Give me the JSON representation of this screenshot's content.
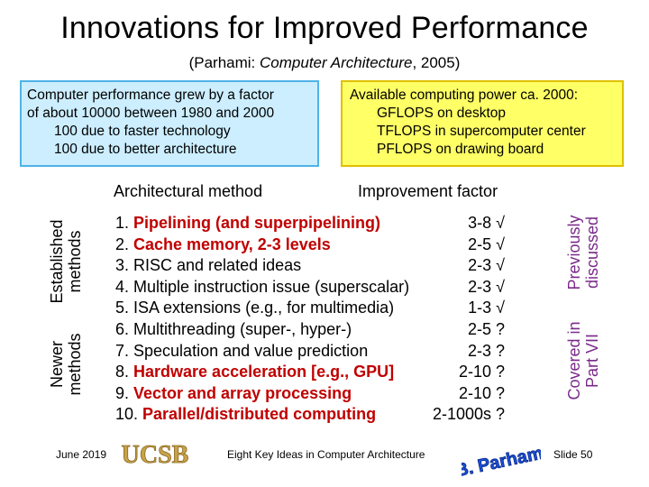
{
  "title": "Innovations for Improved Performance",
  "subtitle_prefix": "(Parhami: ",
  "subtitle_book": "Computer Architecture",
  "subtitle_suffix": ", 2005)",
  "box_left": {
    "line1": "Computer performance grew by a factor",
    "line2": "of about 10000 between 1980 and 2000",
    "line3": "100 due to faster technology",
    "line4": "100 due to better architecture"
  },
  "box_right": {
    "line1": "Available computing power ca. 2000:",
    "line2": "GFLOPS on desktop",
    "line3": "TFLOPS in supercomputer center",
    "line4": "PFLOPS on drawing board"
  },
  "columns": {
    "method": "Architectural method",
    "factor": "Improvement factor"
  },
  "side_labels": {
    "established": [
      "Established",
      "methods"
    ],
    "newer": [
      "Newer",
      "methods"
    ],
    "previously": [
      "Previously",
      "discussed"
    ],
    "covered": [
      "Covered in",
      "Part VII"
    ]
  },
  "methods": [
    {
      "num": "1. ",
      "text": "Pipelining (and superpipelining)",
      "factor": "3-8 √",
      "highlight": true
    },
    {
      "num": "2. ",
      "text": "Cache memory, 2-3 levels",
      "factor": "2-5 √",
      "highlight": true
    },
    {
      "num": "3. ",
      "text": "RISC and related ideas",
      "factor": "2-3 √",
      "highlight": false
    },
    {
      "num": "4. ",
      "text": "Multiple instruction issue (superscalar)",
      "factor": "2-3 √",
      "highlight": false
    },
    {
      "num": "5. ",
      "text": "ISA extensions (e.g., for multimedia)",
      "factor": "1-3 √",
      "highlight": false
    },
    {
      "num": "6. ",
      "text": "Multithreading (super-, hyper-)",
      "factor": "2-5 ?",
      "highlight": false
    },
    {
      "num": "7. ",
      "text": "Speculation and value prediction",
      "factor": "2-3 ?",
      "highlight": false
    },
    {
      "num": "8. ",
      "text": "Hardware acceleration [e.g., GPU]",
      "factor": "2-10 ?",
      "highlight": true
    },
    {
      "num": "9. ",
      "text": "Vector and array processing",
      "factor": "2-10 ?",
      "highlight": true
    },
    {
      "num": "10. ",
      "text": "Parallel/distributed computing",
      "factor": "2-1000s ?",
      "highlight": true
    }
  ],
  "footer": {
    "date": "June 2019",
    "logo_text": "UCSB",
    "center": "Eight Key Ideas in Computer Architecture",
    "author_logo": "B. Parhami",
    "slide": "Slide 50"
  },
  "colors": {
    "highlight": "#c00000",
    "side_label_purple": "#7a2a8a",
    "box_left_bg": "#cceeff",
    "box_right_bg": "#ffff66",
    "ucsb_gold": "#c8a24a"
  }
}
